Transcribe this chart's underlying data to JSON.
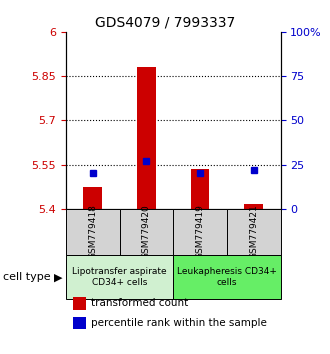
{
  "title": "GDS4079 / 7993337",
  "samples": [
    "GSM779418",
    "GSM779420",
    "GSM779419",
    "GSM779421"
  ],
  "transformed_counts": [
    5.475,
    5.88,
    5.535,
    5.415
  ],
  "percentile_ranks_pct": [
    20,
    27,
    20,
    22
  ],
  "ylim_left": [
    5.4,
    6.0
  ],
  "ylim_right": [
    0,
    100
  ],
  "yticks_left": [
    5.4,
    5.55,
    5.7,
    5.85,
    6.0
  ],
  "ytick_labels_left": [
    "5.4",
    "5.55",
    "5.7",
    "5.85",
    "6"
  ],
  "yticks_right": [
    0,
    25,
    50,
    75,
    100
  ],
  "ytick_labels_right": [
    "0",
    "25",
    "50",
    "75",
    "100%"
  ],
  "hlines": [
    5.55,
    5.7,
    5.85
  ],
  "bar_color": "#cc0000",
  "dot_color": "#0000cc",
  "bar_bottom": 5.4,
  "bar_width": 0.35,
  "groups": [
    {
      "label": "Lipotransfer aspirate\nCD34+ cells",
      "samples": [
        0,
        1
      ],
      "color": "#d0f0d0"
    },
    {
      "label": "Leukapheresis CD34+\ncells",
      "samples": [
        2,
        3
      ],
      "color": "#66ee66"
    }
  ],
  "cell_type_label": "cell type",
  "legend_red_label": "transformed count",
  "legend_blue_label": "percentile rank within the sample",
  "tick_color_left": "#cc0000",
  "tick_color_right": "#0000cc",
  "sample_box_color": "#d3d3d3",
  "title_fontsize": 10,
  "tick_fontsize": 8,
  "sample_fontsize": 6.5,
  "group_fontsize": 6.5,
  "legend_fontsize": 7.5,
  "cell_type_fontsize": 8
}
